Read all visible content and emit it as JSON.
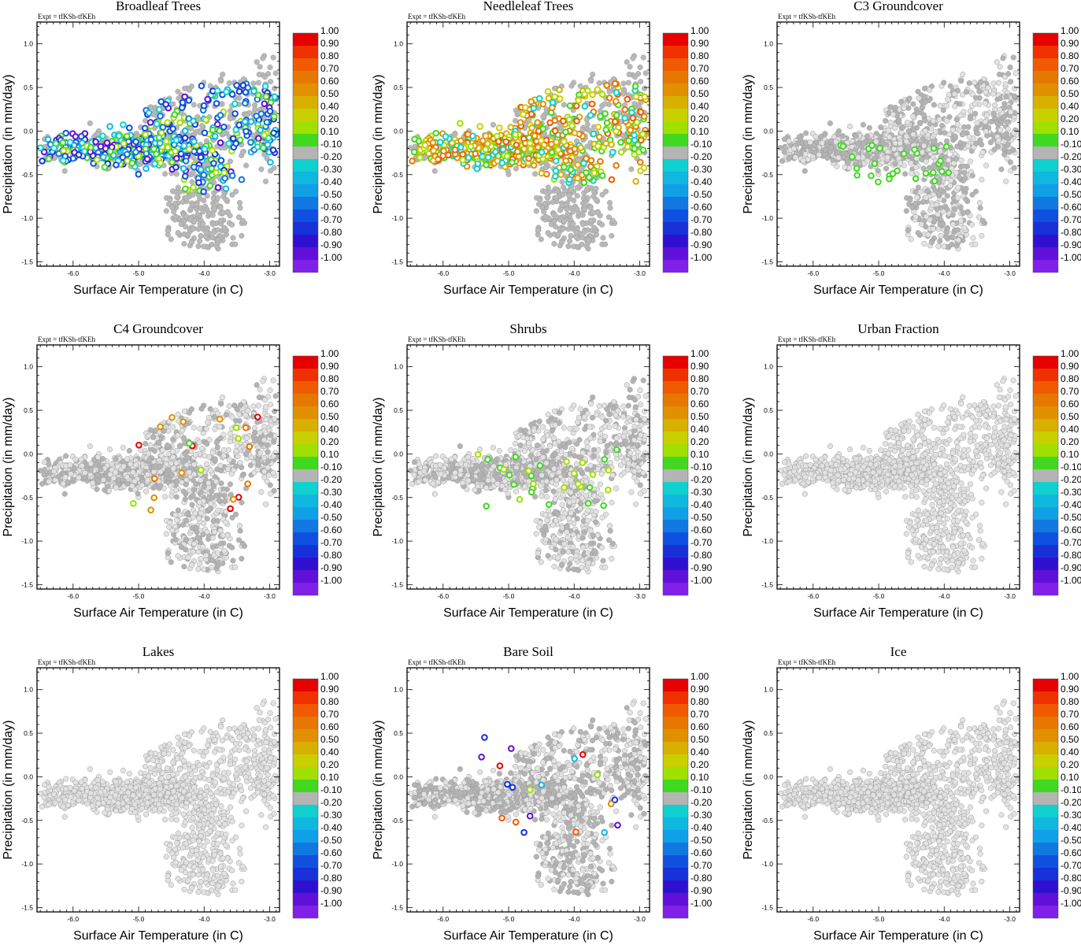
{
  "figure": {
    "experiment_label": "Expt = tfKSh-tfKEh",
    "colorbar": {
      "labels": [
        "1.00",
        "0.90",
        "0.80",
        "0.70",
        "0.60",
        "0.50",
        "0.40",
        "0.20",
        "0.10",
        "-0.10",
        "-0.20",
        "-0.30",
        "-0.40",
        "-0.50",
        "-0.60",
        "-0.70",
        "-0.80",
        "-0.90",
        "-1.00"
      ],
      "colors": [
        "#e60000",
        "#ef3000",
        "#f05a00",
        "#e67800",
        "#e09000",
        "#d8b000",
        "#c8d000",
        "#a0e000",
        "#40d820",
        "#b4b4b4",
        "#10d0d0",
        "#10b8e0",
        "#10a0e8",
        "#1078e0",
        "#1050e0",
        "#1830d8",
        "#3010d0",
        "#6010d8",
        "#8020e8"
      ]
    }
  },
  "chart_data": [
    {
      "type": "scatter",
      "title": "Broadleaf Trees",
      "xlabel": "Surface Air Temperature (in C)",
      "ylabel": "Precipitation (in mm/day)",
      "xlim": [
        -6.55,
        -2.85
      ],
      "ylim": [
        -1.55,
        1.25
      ],
      "xticks": [
        "-6.0",
        "-5.0",
        "-4.0",
        "-3.0"
      ],
      "yticks": [
        "1.0",
        "0.5",
        "0.0",
        "-0.5",
        "-1.0",
        "-1.5"
      ],
      "annotation": "Expt = tfKSh-tfKEh",
      "background_color": "#b9b9b9",
      "highlight": {
        "x_min": -6.5,
        "x_max": -2.9,
        "y_min": -0.7,
        "y_max": 0.55,
        "fraction": 0.45,
        "colors": [
          "#1050e0",
          "#10b8e0",
          "#40d820",
          "#a0e000",
          "#10d0d0",
          "#1830d8",
          "#6010d8",
          "#1078e0"
        ]
      }
    },
    {
      "type": "scatter",
      "title": "Needleleaf Trees",
      "xlabel": "Surface Air Temperature (in C)",
      "ylabel": "Precipitation (in mm/day)",
      "xlim": [
        -6.55,
        -2.85
      ],
      "ylim": [
        -1.55,
        1.25
      ],
      "xticks": [
        "-6.0",
        "-5.0",
        "-4.0",
        "-3.0"
      ],
      "yticks": [
        "1.0",
        "0.5",
        "0.0",
        "-0.5",
        "-1.0",
        "-1.5"
      ],
      "annotation": "Expt = tfKSh-tfKEh",
      "background_color": "#b9b9b9",
      "highlight": {
        "x_min": -6.5,
        "x_max": -2.9,
        "y_min": -0.6,
        "y_max": 0.55,
        "fraction": 0.55,
        "colors": [
          "#d8b000",
          "#c8d000",
          "#e09000",
          "#e67800",
          "#10d0d0",
          "#40d820",
          "#a0e000",
          "#f05a00"
        ]
      }
    },
    {
      "type": "scatter",
      "title": "C3 Groundcover",
      "xlabel": "Surface Air Temperature (in C)",
      "ylabel": "Precipitation (in mm/day)",
      "xlim": [
        -6.55,
        -2.85
      ],
      "ylim": [
        -1.55,
        1.25
      ],
      "xticks": [
        "-6.0",
        "-5.0",
        "-4.0",
        "-3.0"
      ],
      "yticks": [
        "1.0",
        "0.5",
        "0.0",
        "-0.5",
        "-1.0",
        "-1.5"
      ],
      "annotation": "Expt = tfKSh-tfKEh",
      "background_color": "#b4b4b4",
      "light_fraction": 0.5,
      "highlight": {
        "x_min": -5.6,
        "x_max": -3.9,
        "y_min": -0.6,
        "y_max": -0.15,
        "count": 28,
        "colors": [
          "#40d820"
        ]
      }
    },
    {
      "type": "scatter",
      "title": "C4 Groundcover",
      "xlabel": "Surface Air Temperature (in C)",
      "ylabel": "Precipitation (in mm/day)",
      "xlim": [
        -6.55,
        -2.85
      ],
      "ylim": [
        -1.55,
        1.25
      ],
      "xticks": [
        "-6.0",
        "-5.0",
        "-4.0",
        "-3.0"
      ],
      "yticks": [
        "1.0",
        "0.5",
        "0.0",
        "-0.5",
        "-1.0",
        "-1.5"
      ],
      "annotation": "Expt = tfKSh-tfKEh",
      "background_color": "#b4b4b4",
      "light_fraction": 0.6,
      "highlight": {
        "x_min": -5.5,
        "x_max": -3.0,
        "y_min": -0.7,
        "y_max": 0.55,
        "count": 22,
        "colors": [
          "#40d820",
          "#a0e000",
          "#e67800",
          "#e09000",
          "#e60000"
        ]
      }
    },
    {
      "type": "scatter",
      "title": "Shrubs",
      "xlabel": "Surface Air Temperature (in C)",
      "ylabel": "Precipitation (in mm/day)",
      "xlim": [
        -6.55,
        -2.85
      ],
      "ylim": [
        -1.55,
        1.25
      ],
      "xticks": [
        "-6.0",
        "-5.0",
        "-4.0",
        "-3.0"
      ],
      "yticks": [
        "1.0",
        "0.5",
        "0.0",
        "-0.5",
        "-1.0",
        "-1.5"
      ],
      "annotation": "Expt = tfKSh-tfKEh",
      "background_color": "#b4b4b4",
      "light_fraction": 0.65,
      "highlight": {
        "x_min": -5.5,
        "x_max": -3.3,
        "y_min": -0.6,
        "y_max": 0.05,
        "count": 30,
        "colors": [
          "#40d820",
          "#a0e000"
        ]
      }
    },
    {
      "type": "scatter",
      "title": "Urban Fraction",
      "xlabel": "Surface Air Temperature (in C)",
      "ylabel": "Precipitation (in mm/day)",
      "xlim": [
        -6.55,
        -2.85
      ],
      "ylim": [
        -1.55,
        1.25
      ],
      "xticks": [
        "-6.0",
        "-5.0",
        "-4.0",
        "-3.0"
      ],
      "yticks": [
        "1.0",
        "0.5",
        "0.0",
        "-0.5",
        "-1.0",
        "-1.5"
      ],
      "annotation": "Expt = tfKSh-tfKEh",
      "background_color": "#e2e2e2"
    },
    {
      "type": "scatter",
      "title": "Lakes",
      "xlabel": "Surface Air Temperature (in C)",
      "ylabel": "Precipitation (in mm/day)",
      "xlim": [
        -6.55,
        -2.85
      ],
      "ylim": [
        -1.55,
        1.25
      ],
      "xticks": [
        "-6.0",
        "-5.0",
        "-4.0",
        "-3.0"
      ],
      "yticks": [
        "1.0",
        "0.5",
        "0.0",
        "-0.5",
        "-1.0",
        "-1.5"
      ],
      "annotation": "Expt = tfKSh-tfKEh",
      "background_color": "#e2e2e2"
    },
    {
      "type": "scatter",
      "title": "Bare Soil",
      "xlabel": "Surface Air Temperature (in C)",
      "ylabel": "Precipitation (in mm/day)",
      "xlim": [
        -6.55,
        -2.85
      ],
      "ylim": [
        -1.55,
        1.25
      ],
      "xticks": [
        "-6.0",
        "-5.0",
        "-4.0",
        "-3.0"
      ],
      "yticks": [
        "1.0",
        "0.5",
        "0.0",
        "-0.5",
        "-1.0",
        "-1.5"
      ],
      "annotation": "Expt = tfKSh-tfKEh",
      "background_color": "#b4b4b4",
      "light_fraction": 0.5,
      "highlight": {
        "x_min": -5.5,
        "x_max": -3.3,
        "y_min": -0.65,
        "y_max": 0.55,
        "count": 20,
        "colors": [
          "#e60000",
          "#f05a00",
          "#a0e000",
          "#40d820",
          "#6010d8",
          "#1830d8",
          "#10b8e0",
          "#e09000"
        ]
      }
    },
    {
      "type": "scatter",
      "title": "Ice",
      "xlabel": "Surface Air Temperature (in C)",
      "ylabel": "Precipitation (in mm/day)",
      "xlim": [
        -6.55,
        -2.85
      ],
      "ylim": [
        -1.55,
        1.25
      ],
      "xticks": [
        "-6.0",
        "-5.0",
        "-4.0",
        "-3.0"
      ],
      "yticks": [
        "1.0",
        "0.5",
        "0.0",
        "-0.5",
        "-1.0",
        "-1.5"
      ],
      "annotation": "Expt = tfKSh-tfKEh",
      "background_color": "#e2e2e2"
    }
  ]
}
